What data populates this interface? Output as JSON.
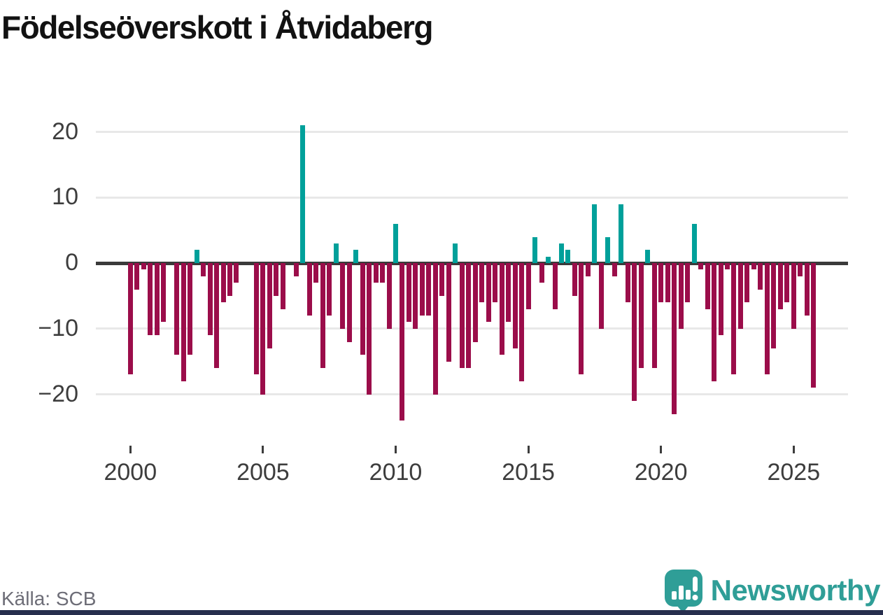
{
  "title": "Födelseöverskott i Åtvidaberg",
  "source_note": "Källa: SCB",
  "branding": {
    "name": "Newsworthy",
    "logo_icon": "speech-bubble-bar-chart-icon",
    "color": "#2f9e97"
  },
  "colors": {
    "positive_bar": "#00a09a",
    "negative_bar": "#9b0d4a",
    "zero_line": "#3a3a3a",
    "gridline": "#e8e8e8",
    "axis_text": "#3d3d3d",
    "bottom_strip": "#272e4d"
  },
  "chart_data": {
    "type": "bar",
    "title": "Födelseöverskott i Åtvidaberg",
    "xlabel": "",
    "ylabel": "",
    "unit": "persons per quarter (birth surplus)",
    "ylim": [
      -26,
      23
    ],
    "y_ticks": [
      20,
      10,
      0,
      -10,
      -20
    ],
    "x_tick_labels": [
      "2000",
      "2005",
      "2010",
      "2015",
      "2020",
      "2025"
    ],
    "grid": "horizontal",
    "legend": "none",
    "quarters_per_year": 4,
    "years": [
      {
        "year": 2000,
        "values": [
          -17,
          -4,
          -1,
          -11
        ]
      },
      {
        "year": 2001,
        "values": [
          -11,
          -9,
          0,
          -14
        ]
      },
      {
        "year": 2002,
        "values": [
          -18,
          -14,
          2,
          -2
        ]
      },
      {
        "year": 2003,
        "values": [
          -11,
          -16,
          -6,
          -5
        ]
      },
      {
        "year": 2004,
        "values": [
          -3,
          0,
          0,
          -17
        ]
      },
      {
        "year": 2005,
        "values": [
          -20,
          -13,
          -5,
          -7
        ]
      },
      {
        "year": 2006,
        "values": [
          0,
          -2,
          21,
          -8
        ]
      },
      {
        "year": 2007,
        "values": [
          -3,
          -16,
          -8,
          3
        ]
      },
      {
        "year": 2008,
        "values": [
          -10,
          -12,
          2,
          -14
        ]
      },
      {
        "year": 2009,
        "values": [
          -20,
          -3,
          -3,
          -10
        ]
      },
      {
        "year": 2010,
        "values": [
          6,
          -24,
          -9,
          -10
        ]
      },
      {
        "year": 2011,
        "values": [
          -8,
          -8,
          -20,
          -5
        ]
      },
      {
        "year": 2012,
        "values": [
          -15,
          3,
          -16,
          -16
        ]
      },
      {
        "year": 2013,
        "values": [
          -12,
          -6,
          -9,
          -6
        ]
      },
      {
        "year": 2014,
        "values": [
          -14,
          -9,
          -13,
          -18
        ]
      },
      {
        "year": 2015,
        "values": [
          -7,
          4,
          -3,
          1
        ]
      },
      {
        "year": 2016,
        "values": [
          -7,
          3,
          2,
          -5
        ]
      },
      {
        "year": 2017,
        "values": [
          -17,
          -2,
          9,
          -10
        ]
      },
      {
        "year": 2018,
        "values": [
          4,
          -2,
          9,
          -6
        ]
      },
      {
        "year": 2019,
        "values": [
          -21,
          -16,
          2,
          -16
        ]
      },
      {
        "year": 2020,
        "values": [
          -6,
          -6,
          -23,
          -10
        ]
      },
      {
        "year": 2021,
        "values": [
          -6,
          6,
          -1,
          -7
        ]
      },
      {
        "year": 2022,
        "values": [
          -18,
          -11,
          -1,
          -17
        ]
      },
      {
        "year": 2023,
        "values": [
          -10,
          -6,
          -1,
          -4
        ]
      },
      {
        "year": 2024,
        "values": [
          -17,
          -13,
          -7,
          -6
        ]
      },
      {
        "year": 2025,
        "values": [
          -10,
          -2,
          -8,
          -19
        ]
      }
    ]
  }
}
